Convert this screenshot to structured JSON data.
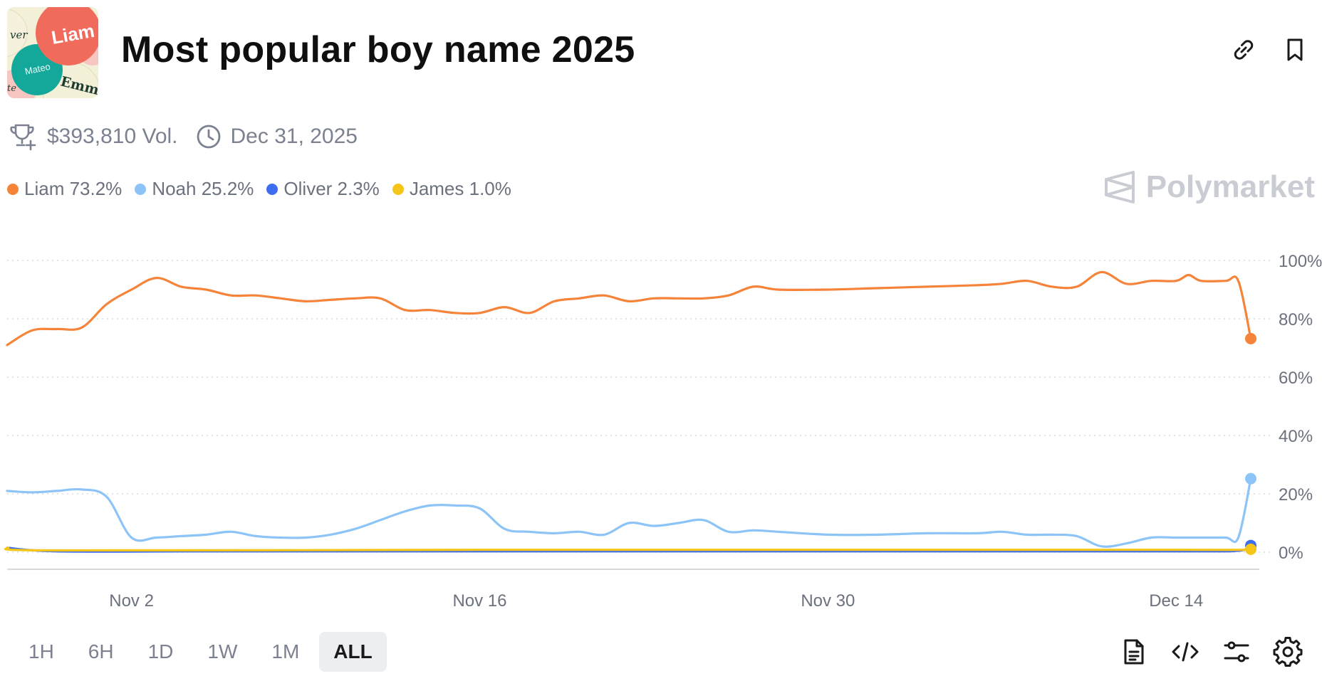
{
  "header": {
    "title": "Most popular boy name 2025",
    "thumbnail_names": [
      "Liam",
      "Mateo",
      "Emma",
      "ver",
      "te"
    ],
    "thumbnail_colors": [
      "#f06b5c",
      "#14a89a",
      "#f3f0d8",
      "#f7c6c1"
    ]
  },
  "meta": {
    "volume": "$393,810 Vol.",
    "end_date": "Dec 31, 2025"
  },
  "icons": {
    "link": "link-icon",
    "bookmark": "bookmark-icon",
    "trophy": "trophy-icon",
    "clock": "clock-icon",
    "document": "document-icon",
    "code": "code-icon",
    "filters": "sliders-icon",
    "settings": "gear-icon"
  },
  "brand": "Polymarket",
  "legend": [
    {
      "label": "Liam 73.2%",
      "color": "#f5843a"
    },
    {
      "label": "Noah 25.2%",
      "color": "#8cc4f8"
    },
    {
      "label": "Oliver 2.3%",
      "color": "#3d6ef0"
    },
    {
      "label": "James 1.0%",
      "color": "#f5c518"
    }
  ],
  "time_ranges": [
    {
      "label": "1H",
      "active": false
    },
    {
      "label": "6H",
      "active": false
    },
    {
      "label": "1D",
      "active": false
    },
    {
      "label": "1W",
      "active": false
    },
    {
      "label": "1M",
      "active": false
    },
    {
      "label": "ALL",
      "active": true
    }
  ],
  "chart_data": {
    "type": "line",
    "x_tick_labels": [
      "Nov 2",
      "Nov 16",
      "Nov 30",
      "Dec 14"
    ],
    "x_tick_dates": [
      "2025-11-02",
      "2025-11-16",
      "2025-11-30",
      "2025-12-14"
    ],
    "x_range": [
      "2025-10-28",
      "2025-12-17"
    ],
    "y_tick_labels": [
      "100%",
      "80%",
      "60%",
      "40%",
      "20%",
      "0%"
    ],
    "y_ticks": [
      100,
      80,
      60,
      40,
      20,
      0
    ],
    "ylim": [
      0,
      100
    ],
    "y_axis_position": "right",
    "grid": "horizontal-dotted",
    "series": [
      {
        "name": "Liam",
        "color": "#f5843a",
        "points": [
          [
            "2025-10-28",
            71
          ],
          [
            "2025-10-29",
            76
          ],
          [
            "2025-10-30",
            76.5
          ],
          [
            "2025-10-31",
            77
          ],
          [
            "2025-11-01",
            85
          ],
          [
            "2025-11-02",
            90
          ],
          [
            "2025-11-03",
            94
          ],
          [
            "2025-11-04",
            91
          ],
          [
            "2025-11-05",
            90
          ],
          [
            "2025-11-06",
            88
          ],
          [
            "2025-11-07",
            88
          ],
          [
            "2025-11-08",
            87
          ],
          [
            "2025-11-09",
            86
          ],
          [
            "2025-11-10",
            86.5
          ],
          [
            "2025-11-11",
            87
          ],
          [
            "2025-11-12",
            87
          ],
          [
            "2025-11-13",
            83
          ],
          [
            "2025-11-14",
            83
          ],
          [
            "2025-11-15",
            82
          ],
          [
            "2025-11-16",
            82
          ],
          [
            "2025-11-17",
            84
          ],
          [
            "2025-11-18",
            82
          ],
          [
            "2025-11-19",
            86
          ],
          [
            "2025-11-20",
            87
          ],
          [
            "2025-11-21",
            88
          ],
          [
            "2025-11-22",
            86
          ],
          [
            "2025-11-23",
            87
          ],
          [
            "2025-11-24",
            87
          ],
          [
            "2025-11-25",
            87
          ],
          [
            "2025-11-26",
            88
          ],
          [
            "2025-11-27",
            91
          ],
          [
            "2025-11-28",
            90
          ],
          [
            "2025-11-30",
            90
          ],
          [
            "2025-12-02",
            90.5
          ],
          [
            "2025-12-04",
            91
          ],
          [
            "2025-12-06",
            91.5
          ],
          [
            "2025-12-07",
            92
          ],
          [
            "2025-12-08",
            93
          ],
          [
            "2025-12-09",
            91
          ],
          [
            "2025-12-10",
            91
          ],
          [
            "2025-12-11",
            96
          ],
          [
            "2025-12-12",
            92
          ],
          [
            "2025-12-13",
            93
          ],
          [
            "2025-12-14",
            93
          ],
          [
            "2025-12-14T12:00",
            95
          ],
          [
            "2025-12-15",
            93
          ],
          [
            "2025-12-16",
            93
          ],
          [
            "2025-12-16T12:00",
            93
          ],
          [
            "2025-12-17",
            73.2
          ]
        ]
      },
      {
        "name": "Noah",
        "color": "#8cc4f8",
        "points": [
          [
            "2025-10-28",
            21
          ],
          [
            "2025-10-29",
            20.5
          ],
          [
            "2025-10-30",
            21
          ],
          [
            "2025-10-31",
            21.5
          ],
          [
            "2025-11-01",
            19
          ],
          [
            "2025-11-02",
            5
          ],
          [
            "2025-11-03",
            5
          ],
          [
            "2025-11-04",
            5.5
          ],
          [
            "2025-11-05",
            6
          ],
          [
            "2025-11-06",
            7
          ],
          [
            "2025-11-07",
            5.5
          ],
          [
            "2025-11-08",
            5
          ],
          [
            "2025-11-09",
            5
          ],
          [
            "2025-11-10",
            6
          ],
          [
            "2025-11-11",
            8
          ],
          [
            "2025-11-12",
            11
          ],
          [
            "2025-11-13",
            14
          ],
          [
            "2025-11-14",
            16
          ],
          [
            "2025-11-15",
            16
          ],
          [
            "2025-11-16",
            15
          ],
          [
            "2025-11-17",
            8
          ],
          [
            "2025-11-18",
            7
          ],
          [
            "2025-11-19",
            6.5
          ],
          [
            "2025-11-20",
            7
          ],
          [
            "2025-11-21",
            6
          ],
          [
            "2025-11-22",
            10
          ],
          [
            "2025-11-23",
            9
          ],
          [
            "2025-11-24",
            10
          ],
          [
            "2025-11-25",
            11
          ],
          [
            "2025-11-26",
            7
          ],
          [
            "2025-11-27",
            7.5
          ],
          [
            "2025-11-28",
            7
          ],
          [
            "2025-11-30",
            6
          ],
          [
            "2025-12-02",
            6
          ],
          [
            "2025-12-04",
            6.5
          ],
          [
            "2025-12-06",
            6.5
          ],
          [
            "2025-12-07",
            7
          ],
          [
            "2025-12-08",
            6
          ],
          [
            "2025-12-09",
            6
          ],
          [
            "2025-12-10",
            5.5
          ],
          [
            "2025-12-11",
            2
          ],
          [
            "2025-12-12",
            3
          ],
          [
            "2025-12-13",
            5
          ],
          [
            "2025-12-14",
            5
          ],
          [
            "2025-12-15",
            5
          ],
          [
            "2025-12-16",
            5
          ],
          [
            "2025-12-16T12:00",
            5
          ],
          [
            "2025-12-17",
            25.2
          ]
        ]
      },
      {
        "name": "Oliver",
        "color": "#3d6ef0",
        "points": [
          [
            "2025-10-28",
            1.5
          ],
          [
            "2025-10-30",
            0.3
          ],
          [
            "2025-11-05",
            0.3
          ],
          [
            "2025-11-16",
            0.3
          ],
          [
            "2025-11-30",
            0.3
          ],
          [
            "2025-12-14",
            0.3
          ],
          [
            "2025-12-16T12:00",
            0.5
          ],
          [
            "2025-12-17",
            2.3
          ]
        ]
      },
      {
        "name": "James",
        "color": "#f5c518",
        "points": [
          [
            "2025-10-28",
            1.5
          ],
          [
            "2025-10-30",
            0.6
          ],
          [
            "2025-11-16",
            0.8
          ],
          [
            "2025-11-30",
            0.8
          ],
          [
            "2025-12-14",
            0.8
          ],
          [
            "2025-12-16T12:00",
            0.8
          ],
          [
            "2025-12-17",
            1.0
          ]
        ]
      }
    ]
  }
}
